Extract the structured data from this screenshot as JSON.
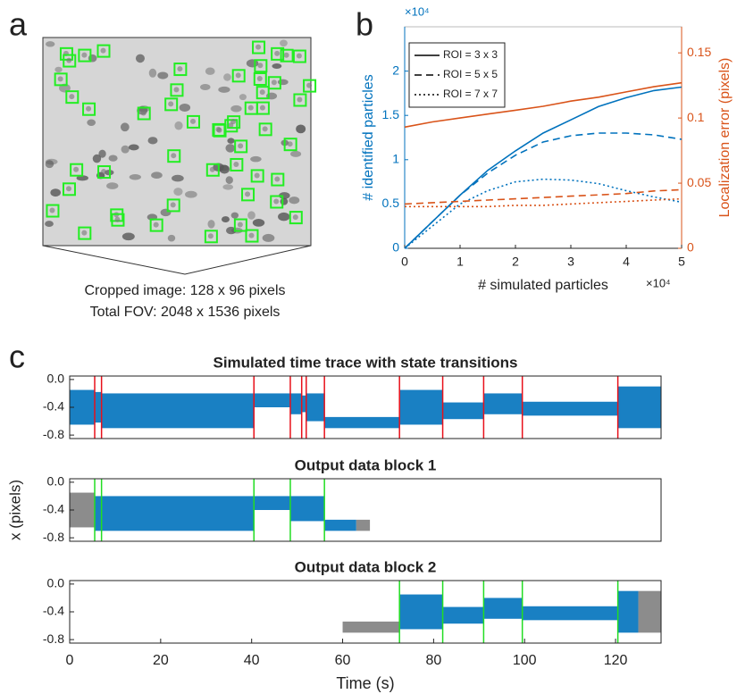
{
  "panel_labels": [
    "a",
    "b",
    "c"
  ],
  "panel_a": {
    "caption": [
      "Cropped image: 128 x 96 pixels",
      "Total FOV: 2048 x 1536 pixels"
    ]
  },
  "chart_data": [
    {
      "type": "line",
      "xlabel": "# simulated particles",
      "x_multiplier": "×10⁴",
      "ylabel": "# identified particles",
      "y_multiplier": "×10⁴",
      "y2label": "Localization error (pixels)",
      "x": [
        0,
        0.5,
        1,
        1.5,
        2,
        2.5,
        3,
        3.5,
        4,
        4.5,
        5
      ],
      "xlim": [
        0,
        5
      ],
      "xticks": [
        0,
        1,
        2,
        3,
        4,
        5
      ],
      "ylim": [
        0,
        2.5
      ],
      "yticks": [
        0,
        0.5,
        1,
        1.5,
        2
      ],
      "ycolor": "#0072bd",
      "y2lim": [
        0,
        0.17
      ],
      "y2ticks": [
        0,
        0.05,
        0.1,
        0.15
      ],
      "y2color": "#d95319",
      "legend": "upper left",
      "series": [
        {
          "name": "ROI = 3 x 3",
          "color": "#0072bd",
          "dash": "solid",
          "values": [
            0,
            0.3,
            0.6,
            0.88,
            1.1,
            1.3,
            1.45,
            1.6,
            1.7,
            1.78,
            1.82
          ]
        },
        {
          "name": "ROI = 5 x 5",
          "color": "#0072bd",
          "dash": "dashed",
          "values": [
            0,
            0.3,
            0.6,
            0.85,
            1.05,
            1.2,
            1.27,
            1.3,
            1.3,
            1.28,
            1.23
          ]
        },
        {
          "name": "ROI = 7 x 7",
          "color": "#0072bd",
          "dash": "dotted",
          "values": [
            0,
            0.25,
            0.5,
            0.65,
            0.75,
            0.78,
            0.77,
            0.73,
            0.65,
            0.58,
            0.52
          ]
        },
        {
          "color": "#d95319",
          "dash": "solid",
          "axis": "y2",
          "values": [
            0.093,
            0.097,
            0.1,
            0.103,
            0.106,
            0.109,
            0.113,
            0.116,
            0.12,
            0.124,
            0.127
          ]
        },
        {
          "color": "#d95319",
          "dash": "dashed",
          "axis": "y2",
          "values": [
            0.034,
            0.035,
            0.036,
            0.037,
            0.038,
            0.039,
            0.04,
            0.041,
            0.042,
            0.044,
            0.045
          ]
        },
        {
          "color": "#d95319",
          "dash": "dotted",
          "axis": "y2",
          "values": [
            0.032,
            0.032,
            0.032,
            0.032,
            0.033,
            0.033,
            0.034,
            0.035,
            0.036,
            0.037,
            0.038
          ]
        }
      ]
    },
    {
      "type": "trace",
      "title": "Simulated time trace with state transitions",
      "xlim": [
        0,
        130
      ],
      "ylim": [
        -0.85,
        0.05
      ],
      "yticks": [
        {
          "value": 0,
          "label": "0.0"
        },
        -0.4,
        -0.8
      ],
      "transition_color": "#e8101a",
      "transitions": [
        5.5,
        7,
        40.5,
        48.5,
        51,
        52,
        56,
        72.5,
        82,
        91,
        99.5,
        120.5
      ],
      "segments": [
        {
          "start": 0,
          "end": 5.5,
          "mean": -0.4,
          "spread": 0.25,
          "color": "#0072bd"
        },
        {
          "start": 5.5,
          "end": 7,
          "mean": -0.4,
          "spread": 0.22,
          "color": "#0072bd"
        },
        {
          "start": 7,
          "end": 40.5,
          "mean": -0.45,
          "spread": 0.25,
          "color": "#0072bd"
        },
        {
          "start": 40.5,
          "end": 48.5,
          "mean": -0.3,
          "spread": 0.1,
          "color": "#0072bd"
        },
        {
          "start": 48.5,
          "end": 51,
          "mean": -0.35,
          "spread": 0.15,
          "color": "#0072bd"
        },
        {
          "start": 51,
          "end": 52,
          "mean": -0.35,
          "spread": 0.12,
          "color": "#0072bd"
        },
        {
          "start": 52,
          "end": 56,
          "mean": -0.4,
          "spread": 0.2,
          "color": "#0072bd"
        },
        {
          "start": 56,
          "end": 72.5,
          "mean": -0.62,
          "spread": 0.08,
          "color": "#0072bd"
        },
        {
          "start": 72.5,
          "end": 82,
          "mean": -0.4,
          "spread": 0.25,
          "color": "#0072bd"
        },
        {
          "start": 82,
          "end": 91,
          "mean": -0.45,
          "spread": 0.12,
          "color": "#0072bd"
        },
        {
          "start": 91,
          "end": 99.5,
          "mean": -0.35,
          "spread": 0.15,
          "color": "#0072bd"
        },
        {
          "start": 99.5,
          "end": 120.5,
          "mean": -0.42,
          "spread": 0.1,
          "color": "#0072bd"
        },
        {
          "start": 120.5,
          "end": 130,
          "mean": -0.4,
          "spread": 0.3,
          "color": "#0072bd"
        }
      ]
    },
    {
      "type": "trace",
      "title": "Output data block 1",
      "ylabel": "x (pixels)",
      "xlim": [
        0,
        130
      ],
      "ylim": [
        -0.85,
        0.05
      ],
      "yticks": [
        {
          "value": 0,
          "label": "0.0"
        },
        -0.4,
        -0.8
      ],
      "transition_color": "#22dd22",
      "transitions": [
        5.5,
        7,
        40.5,
        48.5,
        56
      ],
      "segments": [
        {
          "start": 0,
          "end": 5.5,
          "mean": -0.4,
          "spread": 0.25,
          "color": "#808080"
        },
        {
          "start": 5.5,
          "end": 40.5,
          "mean": -0.45,
          "spread": 0.25,
          "color": "#0072bd"
        },
        {
          "start": 40.5,
          "end": 48.5,
          "mean": -0.3,
          "spread": 0.1,
          "color": "#0072bd"
        },
        {
          "start": 48.5,
          "end": 56,
          "mean": -0.38,
          "spread": 0.18,
          "color": "#0072bd"
        },
        {
          "start": 56,
          "end": 63,
          "mean": -0.62,
          "spread": 0.08,
          "color": "#0072bd"
        },
        {
          "start": 63,
          "end": 66,
          "mean": -0.62,
          "spread": 0.08,
          "color": "#808080"
        }
      ]
    },
    {
      "type": "trace",
      "title": "Output data block 2",
      "xlabel": "Time (s)",
      "xlim": [
        0,
        130
      ],
      "xticks": [
        0,
        20,
        40,
        60,
        80,
        100,
        120
      ],
      "ylim": [
        -0.85,
        0.05
      ],
      "yticks": [
        {
          "value": 0,
          "label": "0.0"
        },
        -0.4,
        -0.8
      ],
      "transition_color": "#22dd22",
      "transitions": [
        72.5,
        82,
        91,
        99.5,
        120.5
      ],
      "segments": [
        {
          "start": 60,
          "end": 72.5,
          "mean": -0.62,
          "spread": 0.08,
          "color": "#808080"
        },
        {
          "start": 72.5,
          "end": 82,
          "mean": -0.4,
          "spread": 0.25,
          "color": "#0072bd"
        },
        {
          "start": 82,
          "end": 91,
          "mean": -0.45,
          "spread": 0.12,
          "color": "#0072bd"
        },
        {
          "start": 91,
          "end": 99.5,
          "mean": -0.35,
          "spread": 0.15,
          "color": "#0072bd"
        },
        {
          "start": 99.5,
          "end": 120.5,
          "mean": -0.42,
          "spread": 0.1,
          "color": "#0072bd"
        },
        {
          "start": 120.5,
          "end": 125,
          "mean": -0.4,
          "spread": 0.3,
          "color": "#0072bd"
        },
        {
          "start": 125,
          "end": 130,
          "mean": -0.4,
          "spread": 0.3,
          "color": "#808080"
        }
      ]
    }
  ]
}
